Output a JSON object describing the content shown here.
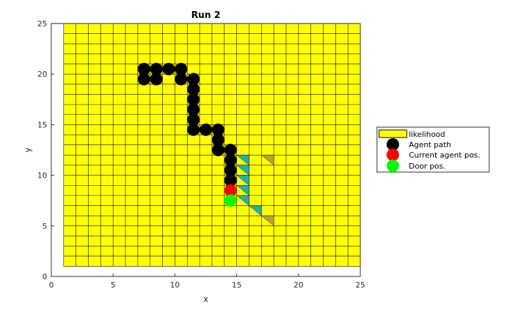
{
  "chart_data": {
    "type": "scatter",
    "title": "Run 2",
    "xlabel": "x",
    "ylabel": "y",
    "xlim": [
      0,
      25
    ],
    "ylim": [
      0,
      25
    ],
    "xticks": [
      0,
      5,
      10,
      15,
      20,
      25
    ],
    "yticks": [
      0,
      5,
      10,
      15,
      20,
      25
    ],
    "grid_extent": [
      1,
      25
    ],
    "colors": {
      "likelihood": "#ffff00",
      "agent_path": "#000000",
      "current_agent": "#ff0000",
      "door": "#00ff00",
      "teal": "#20b2aa",
      "olive": "#b8a040"
    },
    "series": [
      {
        "name": "Agent path",
        "points": [
          [
            7.5,
            20.5
          ],
          [
            8.5,
            20.5
          ],
          [
            7.5,
            19.5
          ],
          [
            8.5,
            19.5
          ],
          [
            9.5,
            20.5
          ],
          [
            10.5,
            20.5
          ],
          [
            10.5,
            19.5
          ],
          [
            11.5,
            19.5
          ],
          [
            11.5,
            18.5
          ],
          [
            11.5,
            17.5
          ],
          [
            11.5,
            16.5
          ],
          [
            11.5,
            15.5
          ],
          [
            11.5,
            14.5
          ],
          [
            12.5,
            14.5
          ],
          [
            13.5,
            14.5
          ],
          [
            13.5,
            13.5
          ],
          [
            13.5,
            12.5
          ],
          [
            14.5,
            12.5
          ],
          [
            14.5,
            11.5
          ],
          [
            14.5,
            10.5
          ],
          [
            14.5,
            9.5
          ]
        ]
      },
      {
        "name": "Current agent pos.",
        "points": [
          [
            14.5,
            8.5
          ]
        ]
      },
      {
        "name": "Door pos.",
        "points": [
          [
            14.5,
            7.5
          ]
        ]
      }
    ],
    "likelihood_cells": [
      {
        "x": 15,
        "y": 11,
        "color": "teal"
      },
      {
        "x": 15,
        "y": 10,
        "color": "teal"
      },
      {
        "x": 15,
        "y": 9,
        "color": "teal"
      },
      {
        "x": 15,
        "y": 8,
        "color": "teal"
      },
      {
        "x": 15,
        "y": 7,
        "color": "teal"
      },
      {
        "x": 16,
        "y": 6,
        "color": "teal"
      },
      {
        "x": 17,
        "y": 5,
        "color": "olive"
      },
      {
        "x": 17,
        "y": 11,
        "color": "olive"
      }
    ],
    "legend": {
      "position": "outside-right",
      "entries": [
        "likelihood",
        "Agent path",
        "Current agent pos.",
        "Door pos."
      ]
    }
  }
}
